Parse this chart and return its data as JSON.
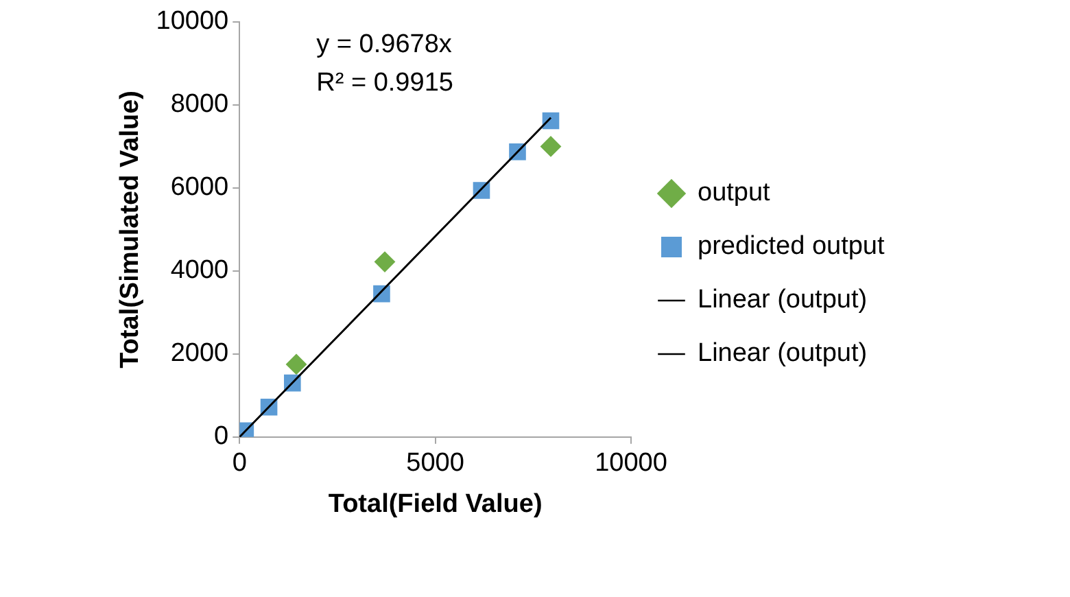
{
  "chart_data": {
    "type": "scatter",
    "xlabel": "Total(Field Value)",
    "ylabel": "Total(Simulated Value)",
    "xlim": [
      0,
      10000
    ],
    "xticks": [
      0,
      5000,
      10000
    ],
    "ylim": [
      0,
      10000
    ],
    "yticks": [
      0,
      2000,
      4000,
      6000,
      8000,
      10000
    ],
    "grid": false,
    "legend": "right",
    "annotations": [
      "y = 0.9678x",
      "R² = 0.9915"
    ],
    "series": [
      {
        "name": "output",
        "color": "#70ad47",
        "marker": "diamond",
        "x": [
          1450,
          3710,
          7950
        ],
        "values": [
          1750,
          4220,
          7000
        ]
      },
      {
        "name": "predicted output",
        "color": "#5b9bd5",
        "marker": "square",
        "x": [
          150,
          750,
          1350,
          3630,
          6180,
          7100,
          7950
        ],
        "values": [
          150,
          720,
          1300,
          3450,
          5940,
          6870,
          7620
        ]
      },
      {
        "name": "Linear (output)",
        "type": "line",
        "color": "#000000",
        "marker": "none",
        "x": [
          0,
          7950
        ],
        "values": [
          0,
          7690
        ]
      },
      {
        "name": "Linear (output)",
        "type": "line",
        "color": "#000000",
        "marker": "none",
        "x": [
          0,
          7950
        ],
        "values": [
          0,
          7690
        ]
      }
    ]
  }
}
